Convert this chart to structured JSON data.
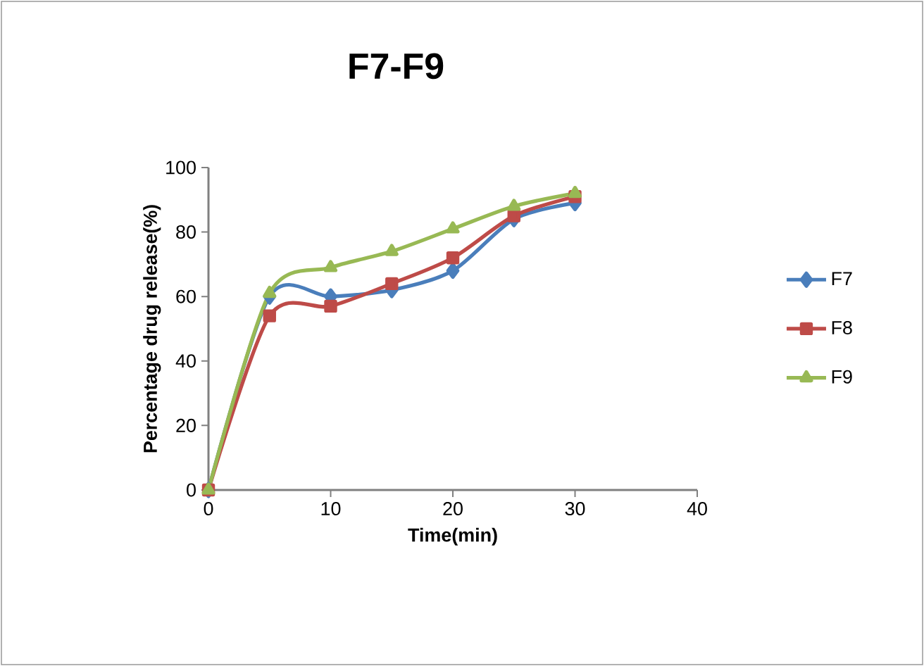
{
  "chart_data": {
    "type": "line",
    "title": "F7-F9",
    "xlabel": "Time(min)",
    "ylabel": "Percentage drug release(%)",
    "x": [
      0,
      5,
      10,
      15,
      20,
      25,
      30
    ],
    "series": [
      {
        "name": "F7",
        "color": "#4a7ebb",
        "marker": "diamond",
        "values": [
          0,
          60,
          60,
          62,
          68,
          84,
          89
        ]
      },
      {
        "name": "F8",
        "color": "#be4b48",
        "marker": "square",
        "values": [
          0,
          54,
          57,
          64,
          72,
          85,
          91
        ]
      },
      {
        "name": "F9",
        "color": "#98b954",
        "marker": "triangle",
        "values": [
          0,
          61,
          69,
          74,
          81,
          88,
          92
        ]
      }
    ],
    "xlim": [
      0,
      40
    ],
    "xticks": [
      0,
      10,
      20,
      30,
      40
    ],
    "ylim": [
      0,
      100
    ],
    "yticks": [
      0,
      20,
      40,
      60,
      80,
      100
    ],
    "grid": false,
    "legend": "right"
  }
}
